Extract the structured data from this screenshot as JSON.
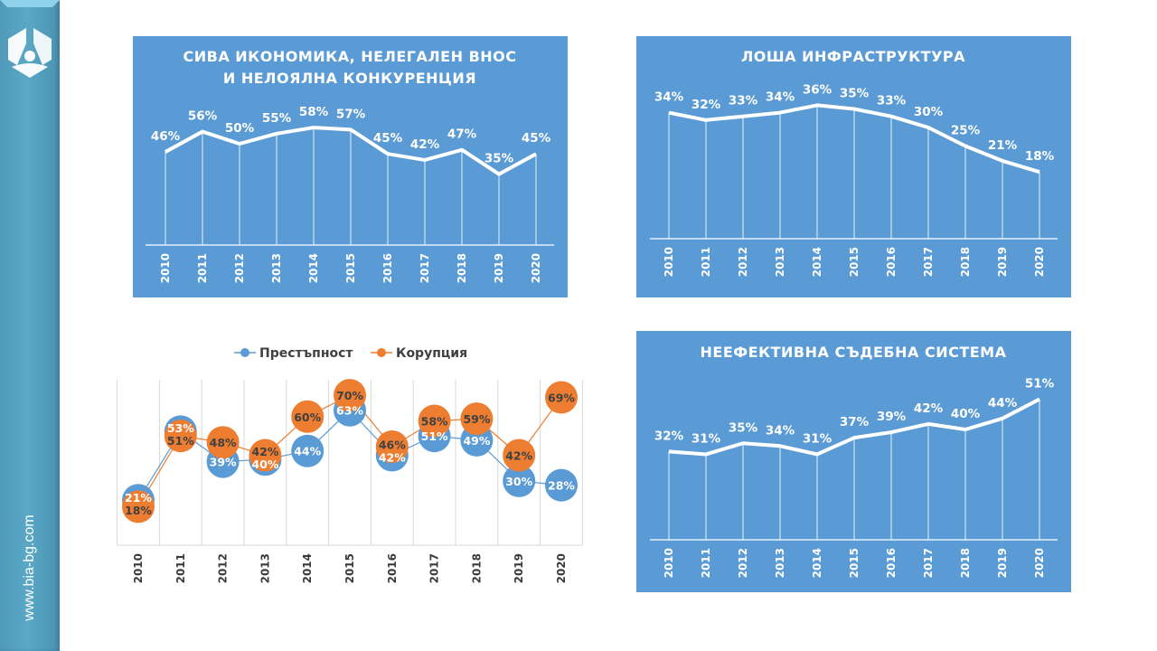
{
  "sidebar": {
    "logo": "bia-logo-icon",
    "url": "www.bia-bg.com"
  },
  "colors": {
    "panel": "#5b9bd5",
    "sidebar": "#4f9ab8",
    "series_blue": "#5b9bd5",
    "series_orange": "#ed7d31",
    "line_white": "#ffffff"
  },
  "chart_data": [
    {
      "id": "shadow-economy",
      "type": "line",
      "title": "СИВА ИКОНОМИКА,  НЕЛЕГАЛЕН ВНОС",
      "title_line2": "И НЕЛОЯЛНА КОНКУРЕНЦИЯ",
      "categories": [
        "2010",
        "2011",
        "2012",
        "2013",
        "2014",
        "2015",
        "2016",
        "2017",
        "2018",
        "2019",
        "2020"
      ],
      "values": [
        46,
        56,
        50,
        55,
        58,
        57,
        45,
        42,
        47,
        35,
        45
      ],
      "labels": [
        "46%",
        "56%",
        "50%",
        "55%",
        "58%",
        "57%",
        "45%",
        "42%",
        "47%",
        "35%",
        "45%"
      ],
      "unit": "%",
      "xlabel": "",
      "ylabel": "",
      "ylim": [
        0,
        60
      ],
      "grid": "vertical drop lines"
    },
    {
      "id": "bad-infrastructure",
      "type": "line",
      "title": "ЛОША ИНФРАСТРУКТУРА",
      "categories": [
        "2010",
        "2011",
        "2012",
        "2013",
        "2014",
        "2015",
        "2016",
        "2017",
        "2018",
        "2019",
        "2020"
      ],
      "values": [
        34,
        32,
        33,
        34,
        36,
        35,
        33,
        30,
        25,
        21,
        18
      ],
      "labels": [
        "34%",
        "32%",
        "33%",
        "34%",
        "36%",
        "35%",
        "33%",
        "30%",
        "25%",
        "21%",
        "18%"
      ],
      "unit": "%",
      "xlabel": "",
      "ylabel": "",
      "ylim": [
        0,
        38
      ],
      "grid": "vertical drop lines"
    },
    {
      "id": "crime-corruption",
      "type": "line",
      "title": "",
      "legend_position": "top",
      "categories": [
        "2010",
        "2011",
        "2012",
        "2013",
        "2014",
        "2015",
        "2016",
        "2017",
        "2018",
        "2019",
        "2020"
      ],
      "series": [
        {
          "name": "Престъпност",
          "color": "#5b9bd5",
          "values": [
            21,
            53,
            39,
            40,
            44,
            63,
            42,
            51,
            49,
            30,
            28
          ],
          "labels": [
            "21%",
            "53%",
            "39%",
            "40%",
            "44%",
            "63%",
            "42%",
            "51%",
            "49%",
            "30%",
            "28%"
          ]
        },
        {
          "name": "Корупция",
          "color": "#ed7d31",
          "values": [
            18,
            51,
            48,
            42,
            60,
            70,
            46,
            58,
            59,
            42,
            69
          ],
          "labels": [
            "18%",
            "51%",
            "48%",
            "42%",
            "60%",
            "70%",
            "46%",
            "58%",
            "59%",
            "42%",
            "69%"
          ]
        }
      ],
      "unit": "%",
      "xlabel": "",
      "ylabel": "",
      "ylim": [
        0,
        76
      ],
      "grid": "vertical gridlines"
    },
    {
      "id": "ineffective-judiciary",
      "type": "line",
      "title": "НЕЕФЕКТИВНА  СЪДЕБНА  СИСТЕМА",
      "categories": [
        "2010",
        "2011",
        "2012",
        "2013",
        "2014",
        "2015",
        "2016",
        "2017",
        "2018",
        "2019",
        "2020"
      ],
      "values": [
        32,
        31,
        35,
        34,
        31,
        37,
        39,
        42,
        40,
        44,
        51
      ],
      "labels": [
        "32%",
        "31%",
        "35%",
        "34%",
        "31%",
        "37%",
        "39%",
        "42%",
        "40%",
        "44%",
        "51%"
      ],
      "unit": "%",
      "xlabel": "",
      "ylabel": "",
      "ylim": [
        0,
        55
      ],
      "grid": "vertical drop lines"
    }
  ]
}
